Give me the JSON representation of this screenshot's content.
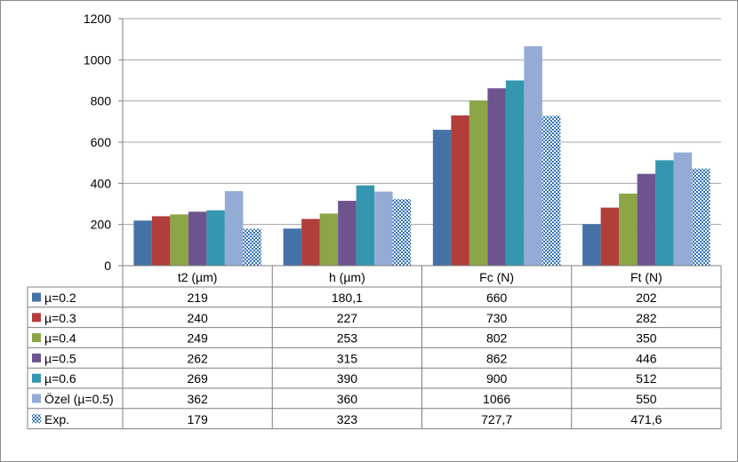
{
  "chart_data": {
    "type": "bar",
    "categories": [
      "t2 (µm)",
      "h (µm)",
      "Fc (N)",
      "Ft (N)"
    ],
    "ylim": [
      0,
      1200
    ],
    "yticks": [
      0,
      200,
      400,
      600,
      800,
      1000,
      1200
    ],
    "ytick_labels": [
      "0",
      "200",
      "400",
      "600",
      "800",
      "1000",
      "1200"
    ],
    "grid": true,
    "legend": "data table below chart",
    "series": [
      {
        "name": "µ=0.2",
        "color": "#4472a6",
        "values": [
          219,
          180.1,
          660,
          202
        ],
        "labels": [
          "219",
          "180,1",
          "660",
          "202"
        ]
      },
      {
        "name": "µ=0.3",
        "color": "#b13e3a",
        "values": [
          240,
          227,
          730,
          282
        ],
        "labels": [
          "240",
          "227",
          "730",
          "282"
        ]
      },
      {
        "name": "µ=0.4",
        "color": "#8ba547",
        "values": [
          249,
          253,
          802,
          350
        ],
        "labels": [
          "249",
          "253",
          "802",
          "350"
        ]
      },
      {
        "name": "µ=0.5",
        "color": "#6e548f",
        "values": [
          262,
          315,
          862,
          446
        ],
        "labels": [
          "262",
          "315",
          "862",
          "446"
        ]
      },
      {
        "name": "µ=0.6",
        "color": "#3596b0",
        "values": [
          269,
          390,
          900,
          512
        ],
        "labels": [
          "269",
          "390",
          "900",
          "512"
        ]
      },
      {
        "name": "Özel (µ=0.5)",
        "color": "#94abd6",
        "values": [
          362,
          360,
          1066,
          550
        ],
        "labels": [
          "362",
          "360",
          "1066",
          "550"
        ]
      },
      {
        "name": "Exp.",
        "color": "#2e6fb8",
        "pattern": "checker",
        "values": [
          179,
          323,
          727.7,
          471.6
        ],
        "labels": [
          "179",
          "323",
          "727,7",
          "471,6"
        ]
      }
    ]
  }
}
